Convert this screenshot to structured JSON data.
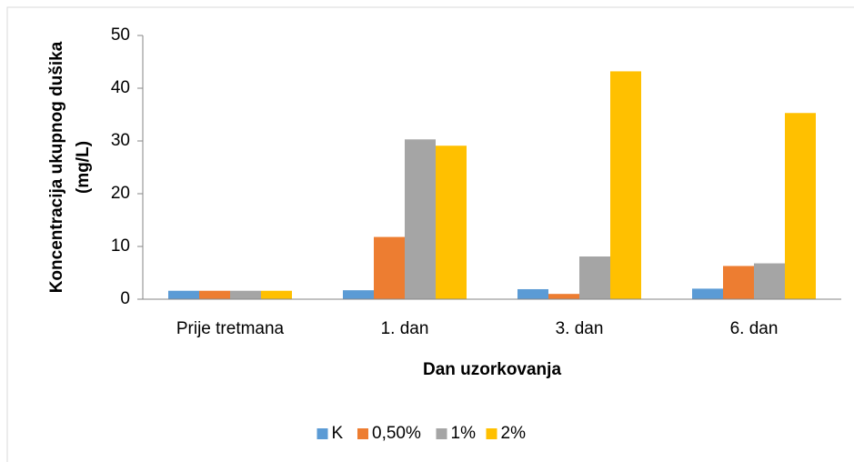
{
  "chart_data": {
    "type": "bar",
    "x_label": "Dan uzorkovanja",
    "y_label": [
      "Koncentracija ukupnog dušika",
      "(mg/L)"
    ],
    "categories": [
      "Prije tretmana",
      "1. dan",
      "3. dan",
      "6. dan"
    ],
    "series": [
      {
        "name": "K",
        "color": "#5b9bd5",
        "values": [
          1.6,
          1.7,
          1.9,
          2.0
        ]
      },
      {
        "name": "0,50%",
        "color": "#ed7d31",
        "values": [
          1.6,
          11.8,
          1.0,
          6.3
        ]
      },
      {
        "name": "1%",
        "color": "#a5a5a5",
        "values": [
          1.6,
          30.3,
          8.1,
          6.8
        ]
      },
      {
        "name": "2%",
        "color": "#ffc000",
        "values": [
          1.6,
          29.1,
          43.2,
          35.3
        ]
      }
    ],
    "ylim": [
      0,
      50
    ],
    "yticks": [
      0,
      10,
      20,
      30,
      40,
      50
    ],
    "grid": false,
    "legend": "bottom"
  }
}
